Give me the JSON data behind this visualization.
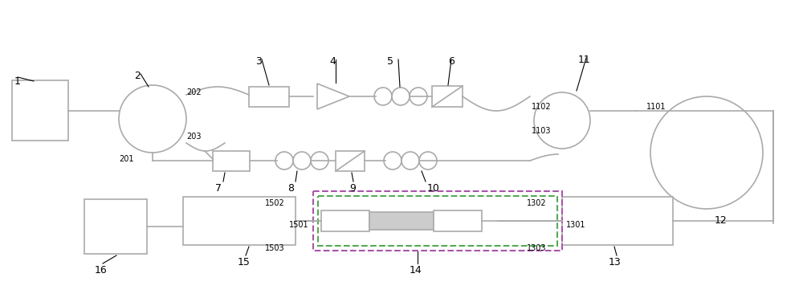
{
  "bg": "#ffffff",
  "lc": "#aaaaaa",
  "lw": 1.2,
  "green_dash": "#55aa55",
  "purple_dash": "#aa55aa",
  "gray_fill": "#cccccc"
}
